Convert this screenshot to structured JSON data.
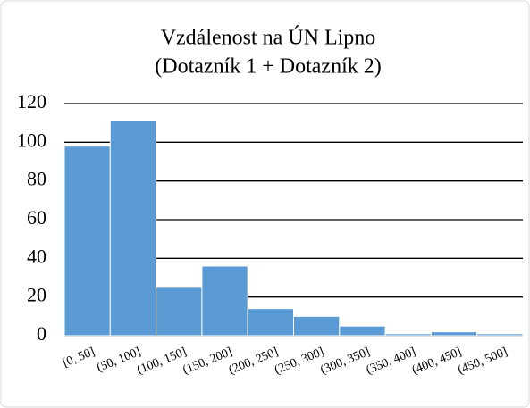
{
  "chart_data": {
    "type": "bar",
    "title": [
      "Vzdálenost na ÚN Lipno",
      "(Dotazník 1 + Dotazník 2)"
    ],
    "categories": [
      "[0, 50]",
      "(50, 100]",
      "(100, 150]",
      "(150, 200]",
      "(200, 250]",
      "(250, 300]",
      "(300, 350]",
      "(350, 400]",
      "(400, 450]",
      "(450, 500]"
    ],
    "values": [
      98,
      111,
      25,
      36,
      14,
      10,
      5,
      1,
      2,
      1
    ],
    "color": "#5b9bd5",
    "ylim": [
      0,
      120
    ],
    "yticks": [
      0,
      20,
      40,
      60,
      80,
      100,
      120
    ],
    "grid": true
  }
}
